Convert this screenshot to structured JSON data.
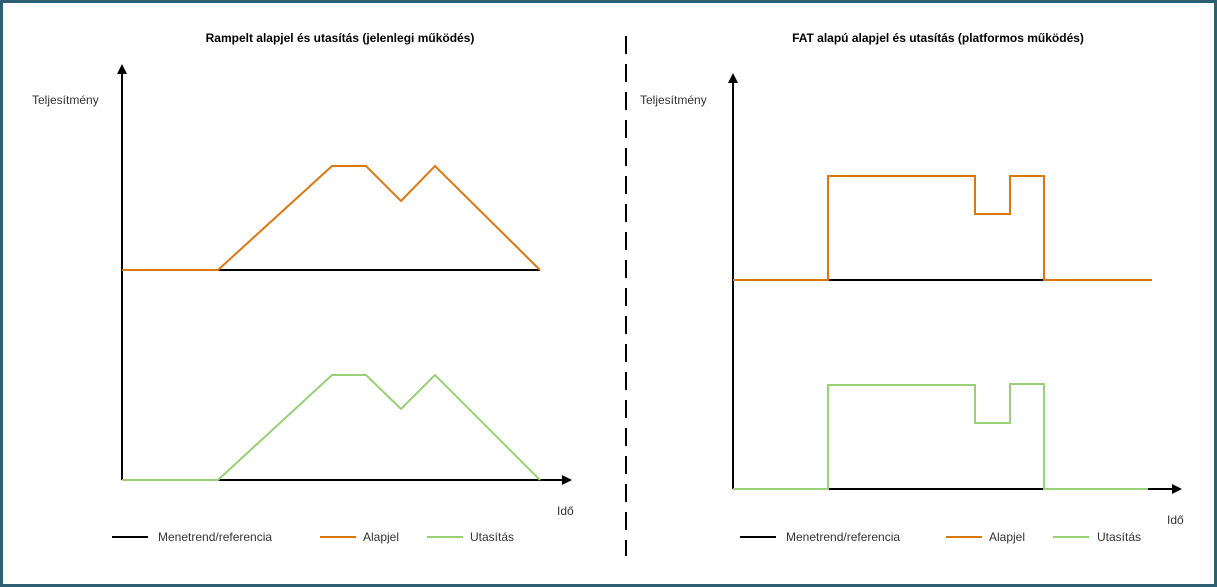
{
  "colors": {
    "reference": "#000000",
    "alapjel": "#d9780f",
    "utasitas": "#97d077",
    "frame": "#2d5f73"
  },
  "left_panel": {
    "title": "Rampelt alapjel és utasítás (jelenlegi működés)",
    "y_label": "Teljesítmény",
    "x_label": "Idő"
  },
  "right_panel": {
    "title": "FAT alapú alapjel és utasítás (platformos működés)",
    "y_label": "Teljesítmény",
    "x_label": "Idő"
  },
  "legend": {
    "reference": "Menetrend/referencia",
    "alapjel": "Alapjel",
    "utasitas": "Utasítás"
  }
}
